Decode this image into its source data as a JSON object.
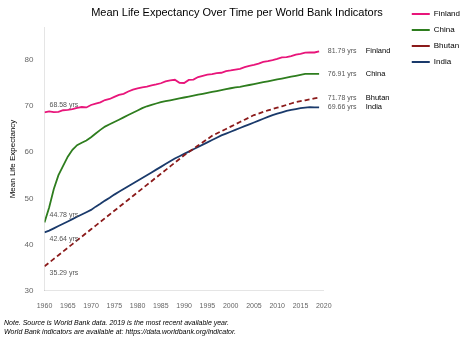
{
  "chart_data": {
    "type": "line",
    "title": "Mean Life Expectancy Over Time per World Bank Indicators",
    "y_label": "Mean Life Expectancy",
    "notes": [
      "Note. Source is World Bank data. 2019 is the most recent available year.",
      "World Bank indicators are available at: https://data.worldbank.org/indicator."
    ],
    "xlim": [
      1960,
      2020
    ],
    "xticks": [
      1960,
      1965,
      1970,
      1975,
      1980,
      1985,
      1990,
      1995,
      2000,
      2005,
      2010,
      2015,
      2020
    ],
    "ylim": [
      30,
      87
    ],
    "yticks": [
      30,
      40,
      50,
      60,
      70,
      80
    ],
    "grid": false,
    "legend": "right",
    "x": [
      1960,
      1961,
      1962,
      1963,
      1964,
      1965,
      1966,
      1967,
      1968,
      1969,
      1970,
      1971,
      1972,
      1973,
      1974,
      1975,
      1976,
      1977,
      1978,
      1979,
      1980,
      1981,
      1982,
      1983,
      1984,
      1985,
      1986,
      1987,
      1988,
      1989,
      1990,
      1991,
      1992,
      1993,
      1994,
      1995,
      1996,
      1997,
      1998,
      1999,
      2000,
      2001,
      2002,
      2003,
      2004,
      2005,
      2006,
      2007,
      2008,
      2009,
      2010,
      2011,
      2012,
      2013,
      2014,
      2015,
      2016,
      2017,
      2018,
      2019
    ],
    "series": [
      {
        "name": "Finland",
        "color": "#e8157a",
        "line_style": "solid",
        "values": [
          68.58,
          68.79,
          68.65,
          68.68,
          69.04,
          69.13,
          69.28,
          69.56,
          69.74,
          69.65,
          70.18,
          70.47,
          70.75,
          71.25,
          71.48,
          71.94,
          72.38,
          72.6,
          73.1,
          73.5,
          73.75,
          74.01,
          74.14,
          74.43,
          74.62,
          74.88,
          75.27,
          75.52,
          75.64,
          74.99,
          74.93,
          75.59,
          75.68,
          76.23,
          76.5,
          76.73,
          76.86,
          77.05,
          77.15,
          77.49,
          77.64,
          77.82,
          78.0,
          78.37,
          78.65,
          78.86,
          79.13,
          79.51,
          79.67,
          79.89,
          80.14,
          80.48,
          80.53,
          80.74,
          81.09,
          81.25,
          81.5,
          81.53,
          81.53,
          81.79
        ]
      },
      {
        "name": "China",
        "color": "#2e7d1e",
        "line_style": "solid",
        "values": [
          44.78,
          48.0,
          52.0,
          55.0,
          57.0,
          59.0,
          60.5,
          61.5,
          62.0,
          62.5,
          63.2,
          64.0,
          64.8,
          65.5,
          66.0,
          66.5,
          67.0,
          67.5,
          68.0,
          68.5,
          69.0,
          69.5,
          69.9,
          70.2,
          70.5,
          70.8,
          71.0,
          71.2,
          71.4,
          71.6,
          71.8,
          72.0,
          72.2,
          72.4,
          72.6,
          72.8,
          73.0,
          73.2,
          73.4,
          73.6,
          73.8,
          74.0,
          74.1,
          74.3,
          74.5,
          74.7,
          74.9,
          75.1,
          75.3,
          75.5,
          75.7,
          75.9,
          76.1,
          76.3,
          76.5,
          76.7,
          76.9,
          76.91,
          76.91,
          76.91
        ]
      },
      {
        "name": "Bhutan",
        "color": "#8b1a1a",
        "line_style": "dashed",
        "values": [
          35.29,
          36.1,
          36.9,
          37.7,
          38.5,
          39.3,
          40.1,
          40.9,
          41.7,
          42.5,
          43.3,
          44.1,
          44.9,
          45.7,
          46.5,
          47.3,
          48.1,
          48.9,
          49.7,
          50.5,
          51.3,
          52.1,
          52.9,
          53.7,
          54.5,
          55.3,
          56.1,
          56.9,
          57.7,
          58.5,
          59.3,
          60.0,
          60.7,
          61.4,
          62.1,
          62.8,
          63.5,
          64.0,
          64.5,
          65.0,
          65.5,
          66.0,
          66.5,
          67.0,
          67.5,
          68.0,
          68.3,
          68.7,
          69.0,
          69.3,
          69.6,
          69.9,
          70.2,
          70.5,
          70.8,
          71.0,
          71.2,
          71.4,
          71.6,
          71.78
        ]
      },
      {
        "name": "India",
        "color": "#1a3a6b",
        "line_style": "solid",
        "values": [
          42.64,
          43.0,
          43.5,
          44.0,
          44.5,
          45.0,
          45.5,
          46.0,
          46.5,
          47.0,
          47.5,
          48.2,
          48.8,
          49.5,
          50.1,
          50.8,
          51.4,
          52.0,
          52.6,
          53.2,
          53.8,
          54.4,
          55.0,
          55.6,
          56.2,
          56.8,
          57.4,
          58.0,
          58.6,
          59.1,
          59.6,
          60.1,
          60.6,
          61.1,
          61.6,
          62.1,
          62.6,
          63.1,
          63.6,
          64.0,
          64.4,
          64.8,
          65.2,
          65.6,
          66.0,
          66.4,
          66.8,
          67.2,
          67.6,
          68.0,
          68.3,
          68.6,
          68.9,
          69.1,
          69.3,
          69.5,
          69.6,
          69.7,
          69.66,
          69.66
        ]
      }
    ],
    "annotations": [
      {
        "text": "68.58 yrs",
        "x": 1960,
        "y": 68.58,
        "series": "Finland"
      },
      {
        "text": "44.78 yrs",
        "x": 1960,
        "y": 44.78,
        "series": "China"
      },
      {
        "text": "35.29 yrs",
        "x": 1960,
        "y": 35.29,
        "series": "Bhutan"
      },
      {
        "text": "42.64 yrs",
        "x": 1960,
        "y": 42.64,
        "series": "India"
      },
      {
        "text": "81.79 yrs",
        "x": 2019,
        "y": 81.79,
        "series": "Finland"
      },
      {
        "text": "76.91 yrs",
        "x": 2019,
        "y": 76.91,
        "series": "China"
      },
      {
        "text": "71.78 yrs",
        "x": 2019,
        "y": 71.78,
        "series": "Bhutan"
      },
      {
        "text": "69.66 yrs",
        "x": 2019,
        "y": 69.66,
        "series": "India"
      }
    ]
  }
}
